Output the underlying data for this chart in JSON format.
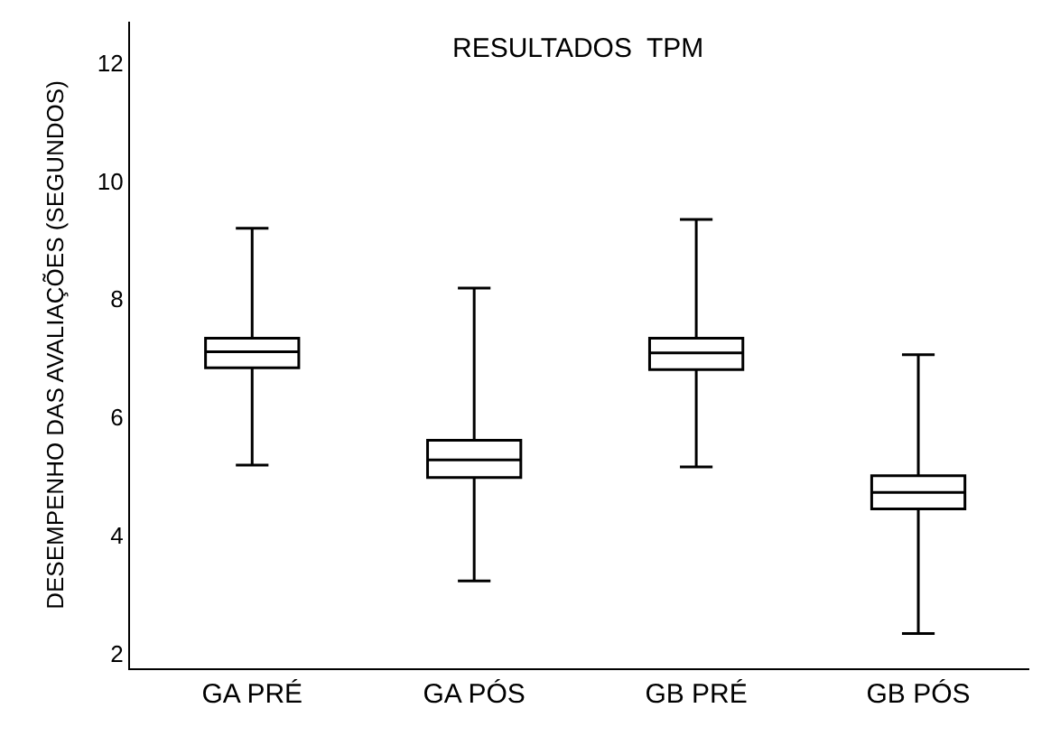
{
  "chart_data": {
    "type": "box",
    "title": "RESULTADOS  TPM",
    "ylabel": "DESEMPENHO DAS AVALIAÇÕES (SEGUNDOS)",
    "categories": [
      "GA PRÉ",
      "GA PÓS",
      "GB PRÉ",
      "GB PÓS"
    ],
    "boxes": [
      {
        "low": 5.19,
        "q1": 6.84,
        "median": 7.11,
        "q3": 7.34,
        "high": 9.2
      },
      {
        "low": 3.23,
        "q1": 4.98,
        "median": 5.28,
        "q3": 5.61,
        "high": 8.19
      },
      {
        "low": 5.16,
        "q1": 6.81,
        "median": 7.09,
        "q3": 7.34,
        "high": 9.35
      },
      {
        "low": 2.34,
        "q1": 4.45,
        "median": 4.73,
        "q3": 5.01,
        "high": 7.06
      }
    ],
    "color": "#000000",
    "ylim": [
      1.75,
      12.7
    ],
    "yticks": [
      2,
      4,
      6,
      8,
      10,
      12
    ]
  }
}
